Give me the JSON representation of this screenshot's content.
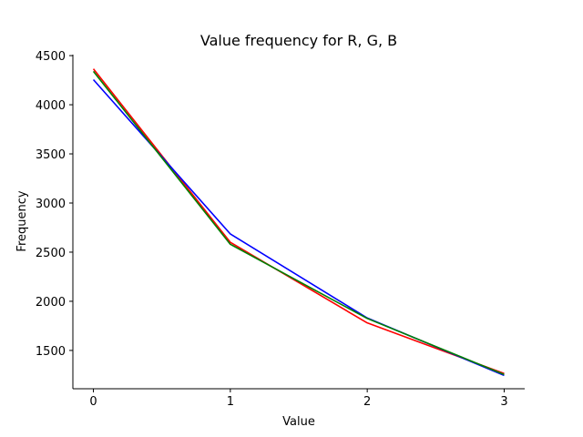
{
  "chart_data": {
    "type": "line",
    "title": "Value frequency for R, G, B",
    "xlabel": "Value",
    "ylabel": "Frequency",
    "x": [
      0,
      1,
      2,
      3
    ],
    "xticks": [
      "0",
      "1",
      "2",
      "3"
    ],
    "yticks": [
      "1500",
      "2000",
      "2500",
      "3000",
      "3500",
      "4000",
      "4500"
    ],
    "xlim": [
      -0.15,
      3.15
    ],
    "ylim": [
      1110,
      4510
    ],
    "grid": false,
    "legend": "none",
    "series": [
      {
        "color": "#ff0000",
        "values": [
          4365,
          2600,
          1780,
          1265
        ]
      },
      {
        "color": "#0000ff",
        "values": [
          4255,
          2685,
          1830,
          1245
        ]
      },
      {
        "color": "#008000",
        "values": [
          4340,
          2580,
          1825,
          1255
        ]
      }
    ]
  }
}
